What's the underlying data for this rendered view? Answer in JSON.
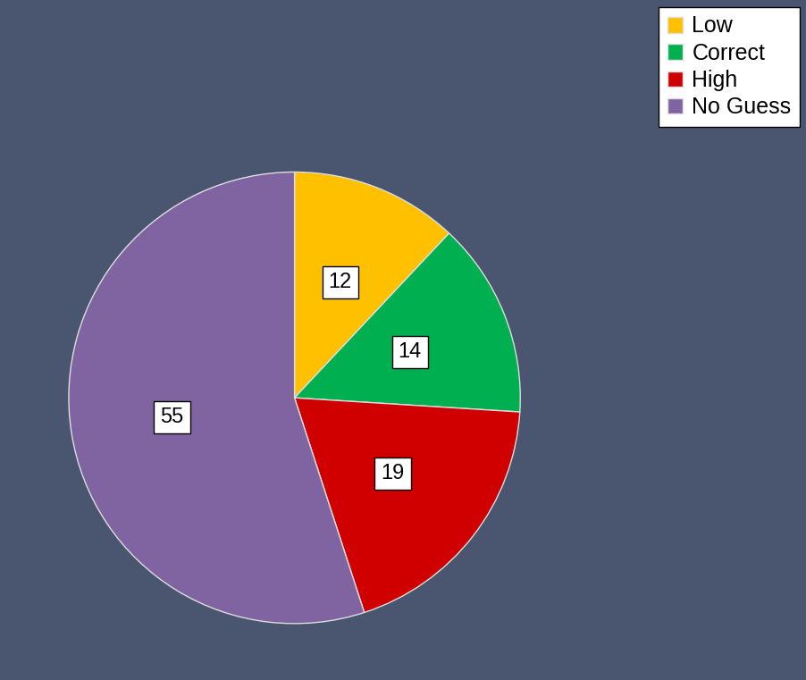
{
  "chart_data": {
    "type": "pie",
    "categories": [
      "Low",
      "Correct",
      "High",
      "No Guess"
    ],
    "values": [
      12,
      14,
      19,
      55
    ],
    "colors": [
      "#ffc000",
      "#00b050",
      "#d00000",
      "#8064a2"
    ],
    "data_labels": true,
    "legend": "upper right"
  }
}
